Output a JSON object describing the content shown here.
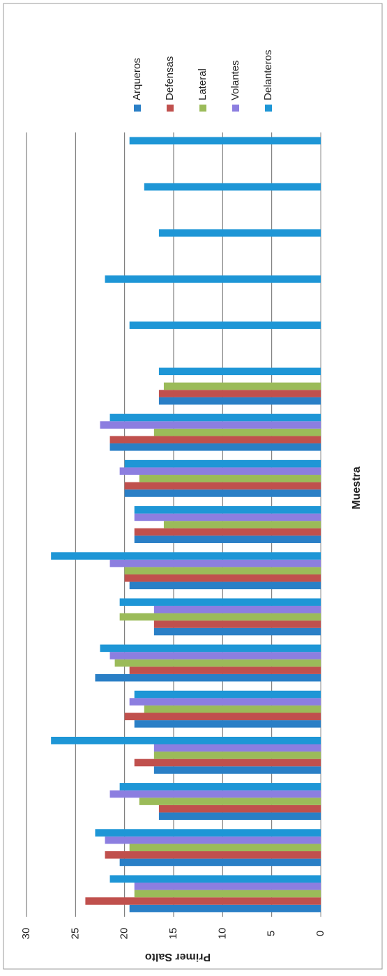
{
  "chart_data": {
    "type": "bar",
    "orientation": "horizontal",
    "y_label": "Primer Salto",
    "x_label": "Muestra",
    "categories": [
      null,
      null,
      null,
      null,
      null,
      null,
      null,
      null,
      null,
      null,
      null,
      null,
      null,
      null,
      null,
      null,
      null
    ],
    "series": [
      {
        "name": "Arqueros",
        "color": "#2a7fc6",
        "values": [
          19.5,
          20.5,
          16.5,
          17,
          19,
          23,
          17,
          19.5,
          19,
          20,
          21.5,
          16.5,
          null,
          null,
          null,
          null,
          null
        ]
      },
      {
        "name": "Defensas",
        "color": "#c0504d",
        "values": [
          24,
          22,
          16.5,
          19,
          20,
          19.5,
          17,
          20,
          19,
          20,
          21.5,
          16.5,
          null,
          null,
          null,
          null,
          null
        ]
      },
      {
        "name": "Lateral",
        "color": "#9bbb59",
        "values": [
          19,
          19.5,
          18.5,
          17,
          18,
          21,
          20.5,
          20,
          16,
          18.5,
          17,
          16,
          null,
          null,
          null,
          null,
          null
        ]
      },
      {
        "name": "Volantes",
        "color": "#8c7ee0",
        "values": [
          19,
          22,
          21.5,
          17,
          19.5,
          21.5,
          17,
          21.5,
          19,
          20.5,
          22.5,
          null,
          null,
          null,
          null,
          null,
          null
        ]
      },
      {
        "name": "Delanteros",
        "color": "#1e96d6",
        "values": [
          21.5,
          23,
          20.5,
          27.5,
          19,
          22.5,
          20.5,
          27.5,
          19,
          20,
          21.5,
          16.5,
          19.5,
          22,
          16.5,
          18,
          19.5
        ]
      }
    ],
    "ylim": [
      0,
      30
    ],
    "yticks": [
      0,
      5,
      10,
      15,
      20,
      25,
      30
    ],
    "grid": true,
    "legend": "top"
  }
}
